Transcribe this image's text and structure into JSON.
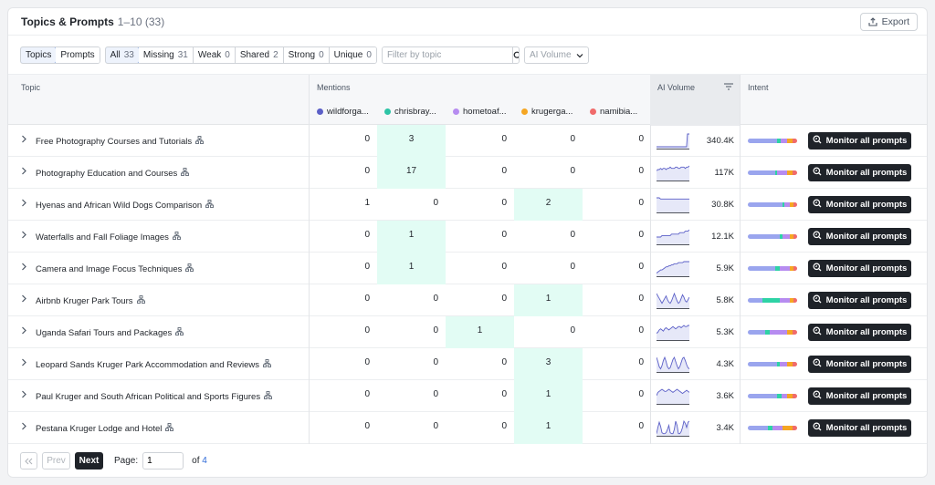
{
  "header": {
    "title": "Topics & Prompts",
    "range": "1–10",
    "total": "(33)",
    "export_label": "Export"
  },
  "view_toggle": [
    {
      "label": "Topics",
      "active": true
    },
    {
      "label": "Prompts",
      "active": false
    }
  ],
  "filters": [
    {
      "label": "All",
      "count": "33",
      "active": true
    },
    {
      "label": "Missing",
      "count": "31"
    },
    {
      "label": "Weak",
      "count": "0"
    },
    {
      "label": "Shared",
      "count": "2"
    },
    {
      "label": "Strong",
      "count": "0"
    },
    {
      "label": "Unique",
      "count": "0"
    }
  ],
  "search": {
    "placeholder": "Filter by topic",
    "value": ""
  },
  "volume_dropdown": {
    "label": "AI Volume"
  },
  "columns": {
    "topic": "Topic",
    "mentions": "Mentions",
    "ai_volume": "AI Volume",
    "intent": "Intent"
  },
  "competitors": [
    {
      "name": "wildforga...",
      "color": "#5b5fc7"
    },
    {
      "name": "chrisbray...",
      "color": "#2ec4a6"
    },
    {
      "name": "hometoaf...",
      "color": "#b68cf0"
    },
    {
      "name": "krugerga...",
      "color": "#f5a623"
    },
    {
      "name": "namibia...",
      "color": "#f06b6b"
    }
  ],
  "intent_colors": [
    "#9aa5ee",
    "#2ed3a5",
    "#b68cf0",
    "#f5a623",
    "#f06b6b"
  ],
  "rows": [
    {
      "topic": "Free Photography Courses and Tutorials",
      "mentions": [
        "0",
        "3",
        "0",
        "0",
        "0"
      ],
      "highlight": 1,
      "volume": "340.4K",
      "spark": [
        2,
        2,
        2,
        2,
        2,
        2,
        2,
        2,
        2,
        2,
        2,
        2,
        2,
        2,
        2,
        2,
        2,
        2,
        2,
        2,
        2,
        2,
        2,
        2,
        2,
        2,
        2,
        2,
        2,
        2,
        2,
        2,
        2,
        16,
        16,
        16
      ],
      "intent": [
        0.6,
        0.07,
        0.13,
        0.1,
        0.1
      ],
      "action": "Monitor all prompts"
    },
    {
      "topic": "Photography Education and Courses",
      "mentions": [
        "0",
        "17",
        "0",
        "0",
        "0"
      ],
      "highlight": 1,
      "volume": "117K",
      "spark": [
        8,
        9,
        9,
        10,
        9,
        10,
        10,
        9,
        10,
        10,
        11,
        10,
        10,
        10,
        11,
        11,
        10,
        10,
        11,
        11,
        11,
        10,
        11,
        11,
        12
      ],
      "intent": [
        0.55,
        0.05,
        0.2,
        0.1,
        0.1
      ],
      "action": "Monitor all prompts"
    },
    {
      "topic": "Hyenas and African Wild Dogs Comparison",
      "mentions": [
        "1",
        "0",
        "0",
        "2",
        "0"
      ],
      "highlight": 3,
      "volume": "30.8K",
      "spark": [
        12,
        12,
        12,
        11,
        11,
        11,
        11,
        11,
        11,
        11,
        11,
        11,
        11,
        11,
        11,
        11,
        11,
        11,
        11,
        11,
        11,
        11,
        11,
        11,
        11
      ],
      "intent": [
        0.7,
        0.05,
        0.1,
        0.08,
        0.07
      ],
      "action": "Monitor all prompts"
    },
    {
      "topic": "Waterfalls and Fall Foliage Images",
      "mentions": [
        "0",
        "1",
        "0",
        "0",
        "0"
      ],
      "highlight": 1,
      "volume": "12.1K",
      "spark": [
        5,
        5,
        5,
        5,
        6,
        6,
        6,
        6,
        6,
        6,
        6,
        7,
        7,
        7,
        7,
        7,
        7,
        8,
        8,
        8,
        8,
        9,
        9,
        9,
        10
      ],
      "intent": [
        0.65,
        0.05,
        0.15,
        0.08,
        0.07
      ],
      "action": "Monitor all prompts"
    },
    {
      "topic": "Camera and Image Focus Techniques",
      "mentions": [
        "0",
        "1",
        "0",
        "0",
        "0"
      ],
      "highlight": 1,
      "volume": "5.9K",
      "spark": [
        3,
        4,
        5,
        6,
        6,
        7,
        8,
        9,
        9,
        10,
        10,
        11,
        11,
        12,
        12,
        12,
        13,
        13,
        13,
        13,
        14,
        14,
        14,
        14,
        14
      ],
      "intent": [
        0.55,
        0.1,
        0.2,
        0.08,
        0.07
      ],
      "action": "Monitor all prompts"
    },
    {
      "topic": "Airbnb Kruger Park Tours",
      "mentions": [
        "0",
        "0",
        "0",
        "1",
        "0"
      ],
      "highlight": 3,
      "volume": "5.8K",
      "spark": [
        12,
        10,
        8,
        6,
        4,
        6,
        8,
        10,
        7,
        5,
        4,
        6,
        9,
        12,
        9,
        6,
        4,
        5,
        8,
        11,
        9,
        6,
        5,
        7,
        9
      ],
      "intent": [
        0.3,
        0.35,
        0.2,
        0.08,
        0.07
      ],
      "action": "Monitor all prompts"
    },
    {
      "topic": "Uganda Safari Tours and Packages",
      "mentions": [
        "0",
        "0",
        "1",
        "0",
        "0"
      ],
      "highlight": 2,
      "volume": "5.3K",
      "spark": [
        6,
        7,
        9,
        10,
        9,
        8,
        10,
        11,
        10,
        9,
        10,
        11,
        12,
        11,
        10,
        11,
        12,
        12,
        11,
        12,
        13,
        12,
        12,
        13,
        13
      ],
      "intent": [
        0.35,
        0.1,
        0.35,
        0.1,
        0.1
      ],
      "action": "Monitor all prompts"
    },
    {
      "topic": "Leopard Sands Kruger Park Accommodation and Reviews",
      "mentions": [
        "0",
        "0",
        "0",
        "3",
        "0"
      ],
      "highlight": 3,
      "volume": "4.3K",
      "spark": [
        14,
        10,
        5,
        3,
        6,
        11,
        14,
        10,
        5,
        3,
        4,
        8,
        12,
        14,
        10,
        6,
        3,
        5,
        9,
        13,
        14,
        11,
        7,
        4,
        3
      ],
      "intent": [
        0.6,
        0.05,
        0.15,
        0.1,
        0.1
      ],
      "action": "Monitor all prompts"
    },
    {
      "topic": "Paul Kruger and South African Political and Sports Figures",
      "mentions": [
        "0",
        "0",
        "0",
        "1",
        "0"
      ],
      "highlight": 3,
      "volume": "3.6K",
      "spark": [
        8,
        11,
        12,
        13,
        14,
        13,
        12,
        12,
        13,
        14,
        13,
        12,
        11,
        12,
        13,
        14,
        13,
        12,
        11,
        10,
        11,
        12,
        13,
        12,
        11
      ],
      "intent": [
        0.6,
        0.08,
        0.12,
        0.1,
        0.1
      ],
      "action": "Monitor all prompts"
    },
    {
      "topic": "Pestana Kruger Lodge and Hotel",
      "mentions": [
        "0",
        "0",
        "0",
        "1",
        "0"
      ],
      "highlight": 3,
      "volume": "3.4K",
      "spark": [
        2,
        8,
        13,
        9,
        3,
        2,
        2,
        3,
        6,
        10,
        3,
        2,
        2,
        6,
        14,
        10,
        2,
        2,
        4,
        8,
        14,
        12,
        8,
        13,
        14
      ],
      "intent": [
        0.4,
        0.1,
        0.2,
        0.2,
        0.1
      ],
      "action": "Monitor all prompts"
    }
  ],
  "pagination": {
    "prev": "Prev",
    "next": "Next",
    "page_label": "Page:",
    "current": "1",
    "of_label": "of",
    "total_pages": "4"
  }
}
